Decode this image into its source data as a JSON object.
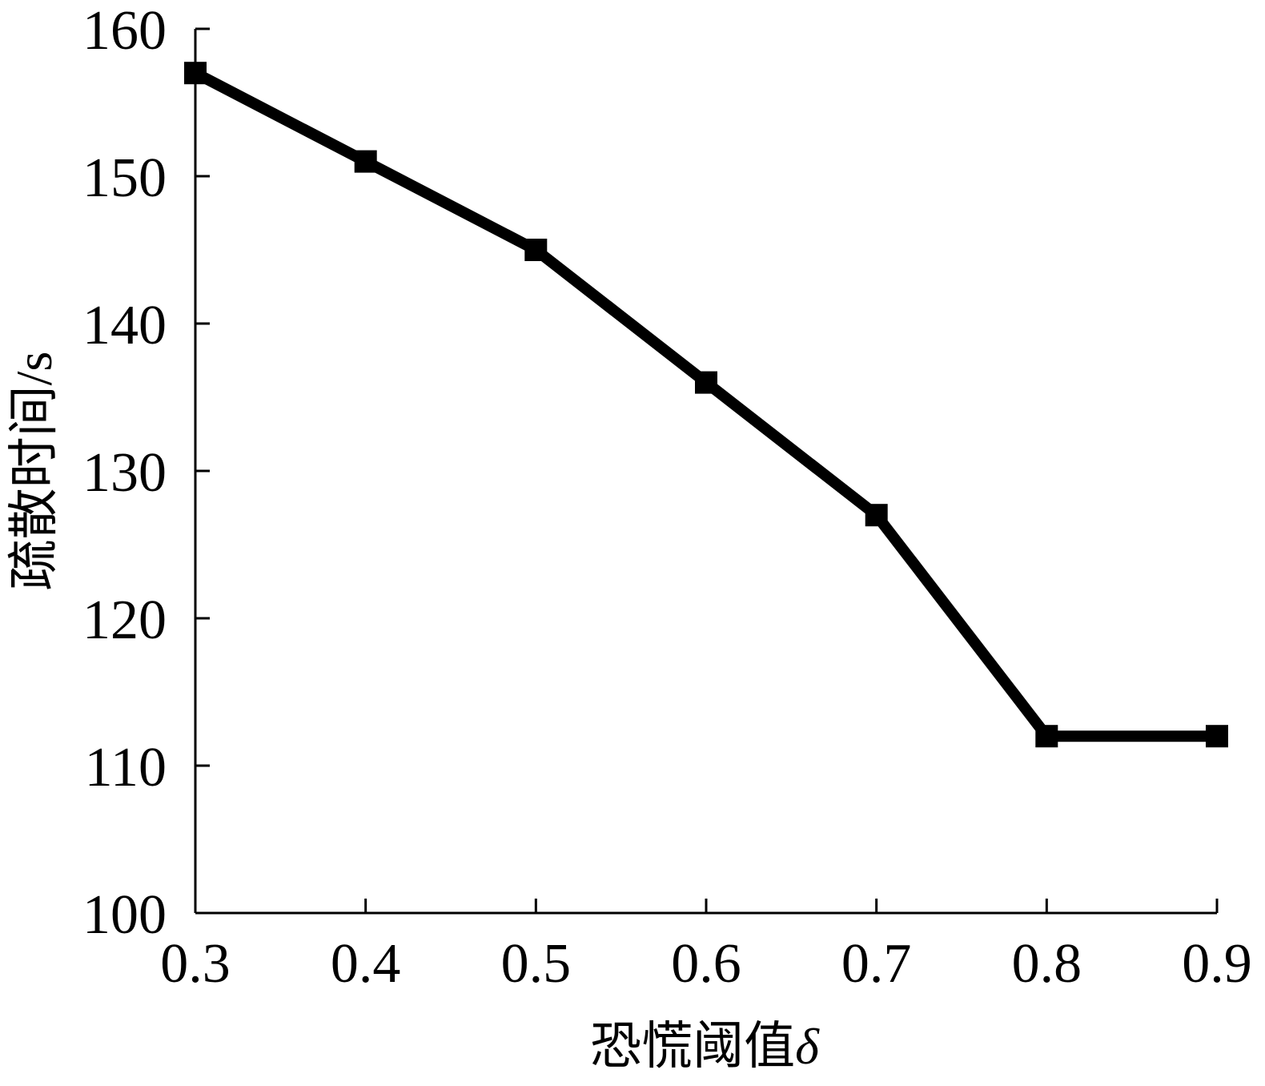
{
  "chart_data": {
    "type": "line",
    "title": "",
    "xlabel": "恐慌阈值",
    "xlabel_symbol": "δ",
    "ylabel": "疏散时间/s",
    "xlim": [
      0.3,
      0.9
    ],
    "ylim": [
      100,
      160
    ],
    "x_ticks": [
      "0.3",
      "0.4",
      "0.5",
      "0.6",
      "0.7",
      "0.8",
      "0.9"
    ],
    "y_ticks": [
      "100",
      "110",
      "120",
      "130",
      "140",
      "150",
      "160"
    ],
    "grid": false,
    "legend": "none",
    "series": [
      {
        "marker": "square",
        "color": "#000000",
        "x": [
          0.3,
          0.4,
          0.5,
          0.6,
          0.7,
          0.8,
          0.9
        ],
        "y": [
          157,
          151,
          145,
          136,
          127,
          112,
          112
        ]
      }
    ]
  }
}
